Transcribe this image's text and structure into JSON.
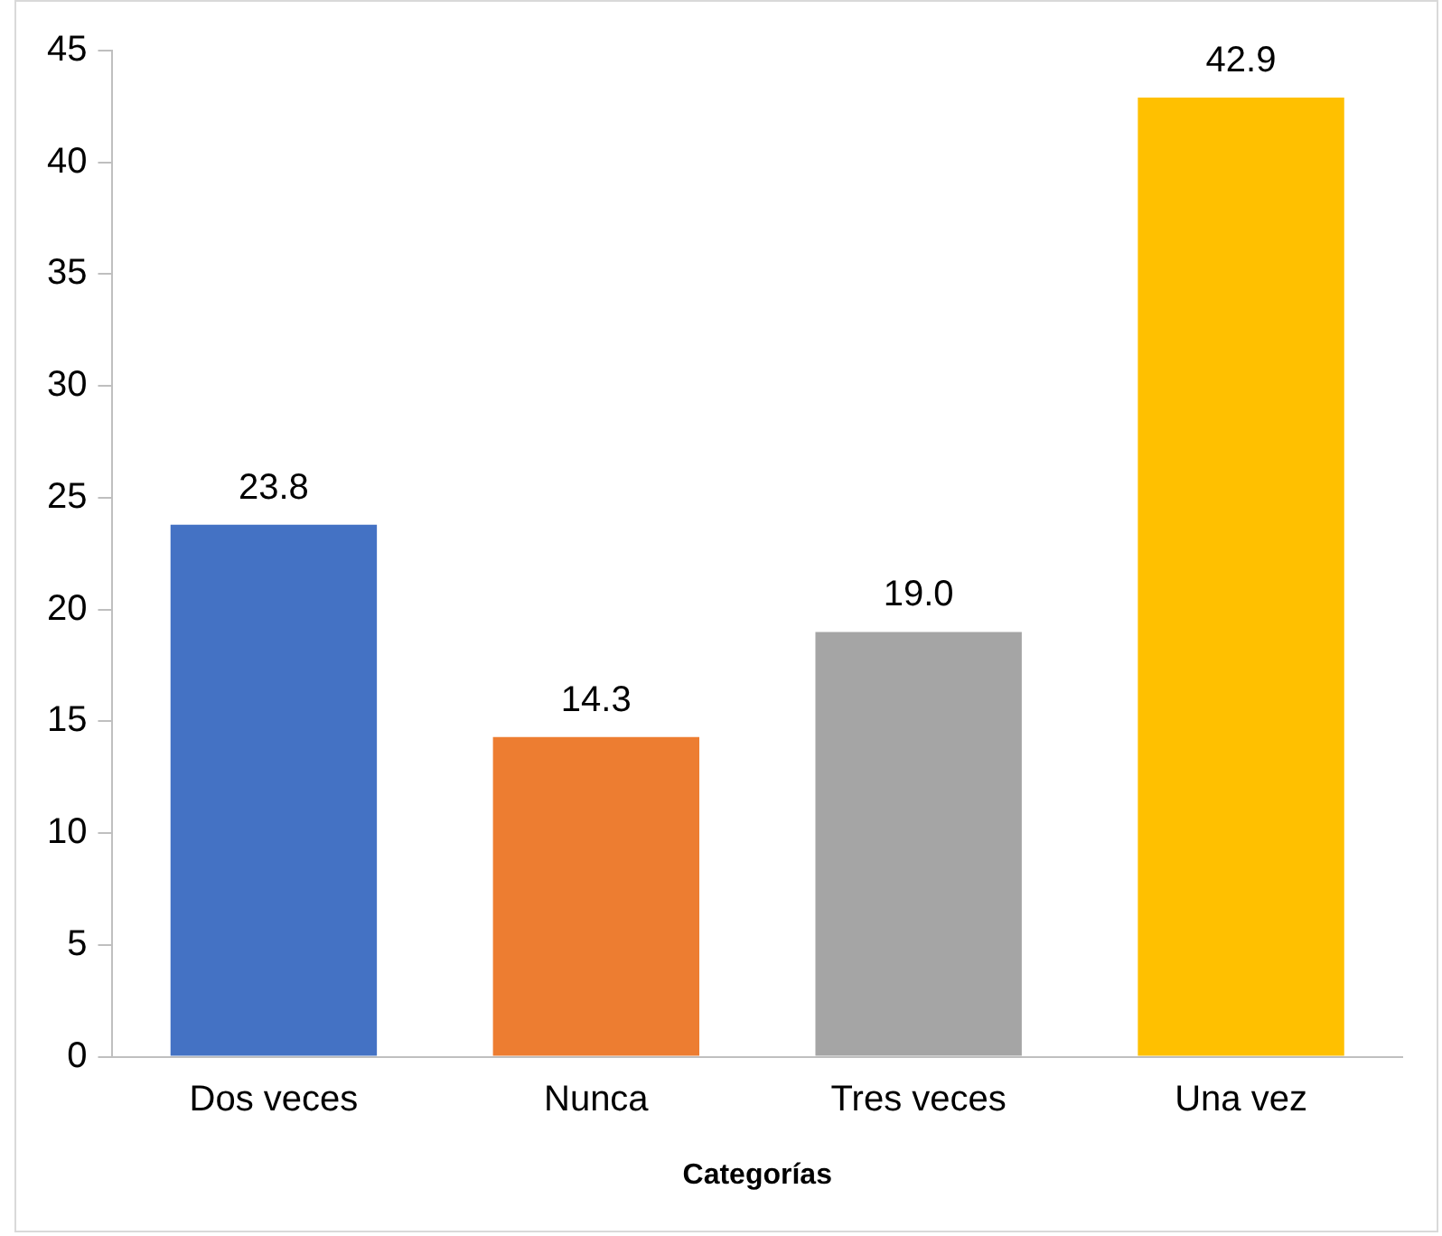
{
  "chart_data": {
    "type": "bar",
    "xlabel": "Categorías",
    "categories": [
      "Dos veces",
      "Nunca",
      "Tres veces",
      "Una vez"
    ],
    "values": [
      23.8,
      14.3,
      19.0,
      42.9
    ],
    "value_labels": [
      "23.8",
      "14.3",
      "19.0",
      "42.9"
    ],
    "colors": [
      "#4472c4",
      "#ed7d31",
      "#a5a5a5",
      "#ffc000"
    ],
    "ylim": [
      0,
      45
    ],
    "yticks": [
      0,
      5,
      10,
      15,
      20,
      25,
      30,
      35,
      40,
      45
    ],
    "grid": false,
    "legend": false
  }
}
